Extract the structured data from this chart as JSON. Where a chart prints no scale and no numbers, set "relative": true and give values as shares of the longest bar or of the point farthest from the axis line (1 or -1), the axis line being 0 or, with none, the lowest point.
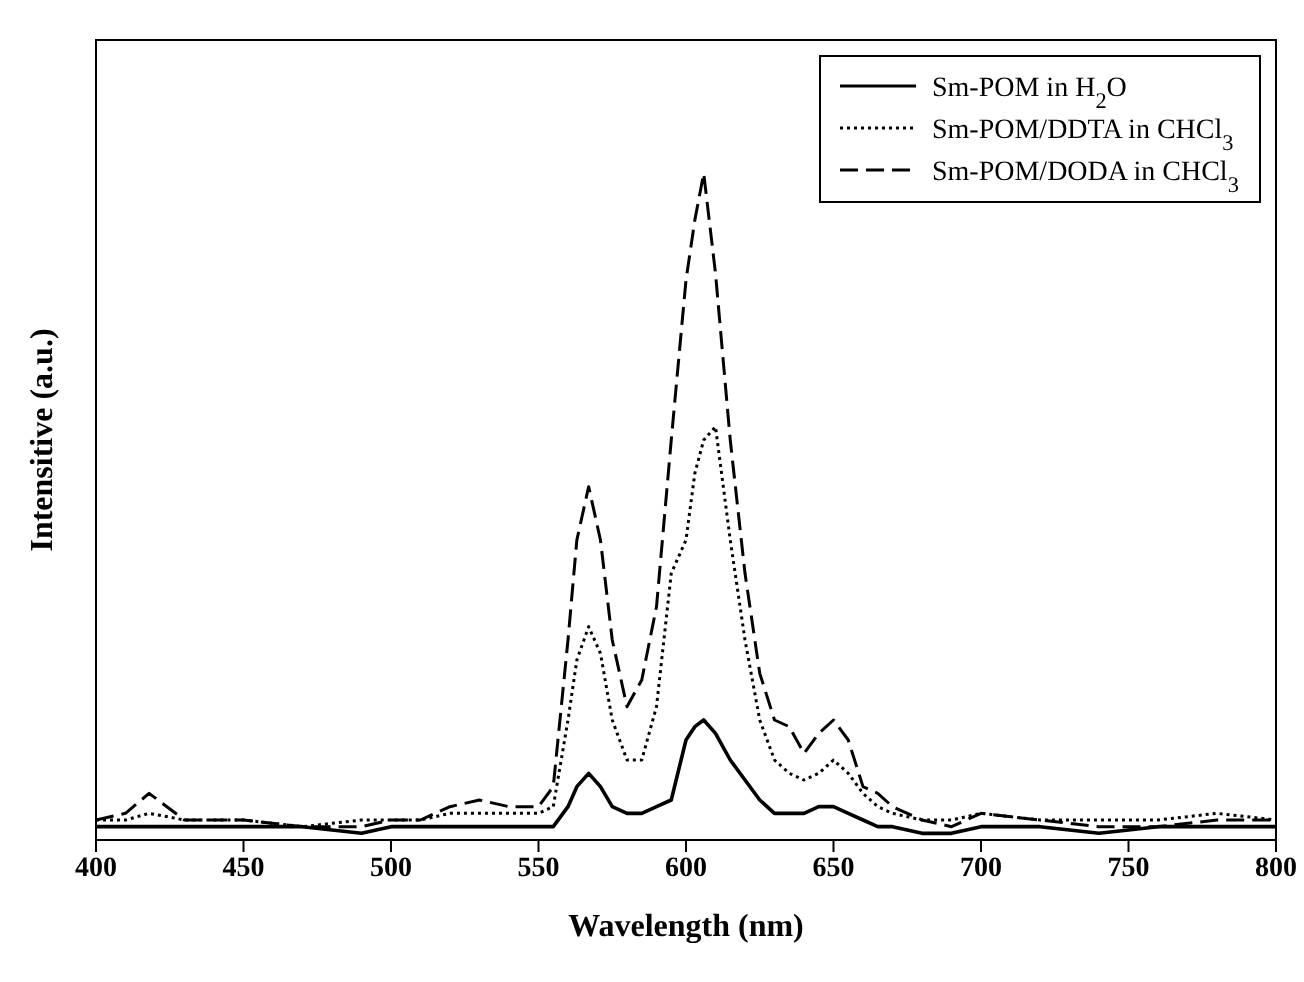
{
  "chart_data": {
    "type": "line",
    "xlabel": "Wavelength (nm)",
    "ylabel": "Intensitive (a.u.)",
    "relative": true,
    "xlim": [
      400,
      800
    ],
    "xticks": [
      400,
      450,
      500,
      550,
      600,
      650,
      700,
      750,
      800
    ],
    "x": [
      400,
      410,
      418,
      430,
      450,
      470,
      490,
      500,
      510,
      520,
      530,
      540,
      550,
      555,
      560,
      563,
      567,
      571,
      575,
      580,
      585,
      590,
      595,
      600,
      603,
      606,
      610,
      615,
      620,
      625,
      630,
      635,
      640,
      645,
      650,
      655,
      660,
      665,
      670,
      680,
      690,
      700,
      720,
      740,
      760,
      780,
      800
    ],
    "legend": "top right",
    "marker": "none",
    "series": [
      {
        "name": "Sm-POM in H$_{2}$O",
        "color": "#000000",
        "line_style": "solid",
        "values": [
          0.02,
          0.02,
          0.02,
          0.02,
          0.02,
          0.02,
          0.01,
          0.02,
          0.02,
          0.02,
          0.02,
          0.02,
          0.02,
          0.02,
          0.05,
          0.08,
          0.1,
          0.08,
          0.05,
          0.04,
          0.04,
          0.05,
          0.06,
          0.15,
          0.17,
          0.18,
          0.16,
          0.12,
          0.09,
          0.06,
          0.04,
          0.04,
          0.04,
          0.05,
          0.05,
          0.04,
          0.03,
          0.02,
          0.02,
          0.01,
          0.01,
          0.02,
          0.02,
          0.01,
          0.02,
          0.02,
          0.02
        ]
      },
      {
        "name": "Sm-POM/DDTA in CHCl$_{3}$",
        "color": "#000000",
        "line_style": "dotted",
        "values": [
          0.03,
          0.03,
          0.04,
          0.03,
          0.03,
          0.02,
          0.03,
          0.03,
          0.03,
          0.04,
          0.04,
          0.04,
          0.04,
          0.05,
          0.18,
          0.27,
          0.32,
          0.28,
          0.18,
          0.12,
          0.12,
          0.2,
          0.4,
          0.45,
          0.55,
          0.6,
          0.62,
          0.45,
          0.3,
          0.18,
          0.12,
          0.1,
          0.09,
          0.1,
          0.12,
          0.1,
          0.07,
          0.05,
          0.04,
          0.03,
          0.03,
          0.04,
          0.03,
          0.03,
          0.03,
          0.04,
          0.03
        ]
      },
      {
        "name": "Sm-POM/DODA in CHCl$_{3}$",
        "color": "#000000",
        "line_style": "dashed",
        "values": [
          0.03,
          0.04,
          0.07,
          0.03,
          0.03,
          0.02,
          0.02,
          0.03,
          0.03,
          0.05,
          0.06,
          0.05,
          0.05,
          0.08,
          0.3,
          0.45,
          0.53,
          0.45,
          0.3,
          0.2,
          0.24,
          0.35,
          0.6,
          0.84,
          0.93,
          1.0,
          0.85,
          0.6,
          0.4,
          0.25,
          0.18,
          0.17,
          0.13,
          0.16,
          0.18,
          0.15,
          0.08,
          0.07,
          0.05,
          0.03,
          0.02,
          0.04,
          0.03,
          0.02,
          0.02,
          0.03,
          0.03
        ]
      }
    ]
  }
}
